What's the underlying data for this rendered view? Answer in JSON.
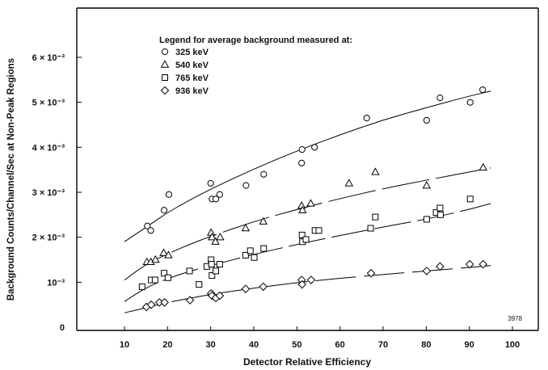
{
  "chart_data": {
    "type": "scatter",
    "xlabel": "Detector Relative Efficiency",
    "ylabel": "Background Counts/Channel/Sec at Non-Peak Regions",
    "xlim": [
      0,
      100
    ],
    "ylim": [
      0,
      0.007
    ],
    "x_ticks": [
      10,
      20,
      30,
      40,
      50,
      60,
      70,
      80,
      90,
      100
    ],
    "x_tick_labels": [
      "10",
      "20",
      "30",
      "40",
      "50",
      "60",
      "70",
      "80",
      "90",
      "100"
    ],
    "y_ticks": [
      0,
      0.001,
      0.002,
      0.003,
      0.004,
      0.005,
      0.006
    ],
    "y_tick_labels": [
      "0",
      "10⁻³",
      "2 × 10⁻³",
      "3 × 10⁻³",
      "4 × 10⁻³",
      "5 × 10⁻³",
      "6 × 10⁻³"
    ],
    "grid": false,
    "legend_title": "Legend for average background measured at:",
    "legend_position": "top-left",
    "figure_number": "3978",
    "series": [
      {
        "name": "325 keV",
        "marker": "circle",
        "points": [
          [
            15.3,
            0.00225
          ],
          [
            16.1,
            0.00215
          ],
          [
            19.2,
            0.0026
          ],
          [
            20.3,
            0.00295
          ],
          [
            30,
            0.0032
          ],
          [
            30.3,
            0.00285
          ],
          [
            31.2,
            0.00285
          ],
          [
            32.1,
            0.00295
          ],
          [
            38.2,
            0.00315
          ],
          [
            42.3,
            0.0034
          ],
          [
            51.2,
            0.00395
          ],
          [
            51.1,
            0.00365
          ],
          [
            54.1,
            0.004
          ],
          [
            66.2,
            0.00465
          ],
          [
            80.1,
            0.0046
          ],
          [
            83.2,
            0.0051
          ],
          [
            90.2,
            0.005
          ],
          [
            93.1,
            0.00528
          ]
        ],
        "fit_curve": [
          [
            10,
            0.0019
          ],
          [
            15,
            0.00222
          ],
          [
            20,
            0.00255
          ],
          [
            25,
            0.00282
          ],
          [
            30,
            0.00307
          ],
          [
            40,
            0.00352
          ],
          [
            50,
            0.00392
          ],
          [
            60,
            0.00428
          ],
          [
            70,
            0.00461
          ],
          [
            80,
            0.00488
          ],
          [
            90,
            0.00514
          ],
          [
            95,
            0.00525
          ]
        ]
      },
      {
        "name": "540 keV",
        "marker": "triangle",
        "points": [
          [
            15.2,
            0.00145
          ],
          [
            16.1,
            0.00145
          ],
          [
            17.2,
            0.0015
          ],
          [
            19.1,
            0.00165
          ],
          [
            20.2,
            0.0016
          ],
          [
            30.1,
            0.0021
          ],
          [
            30.3,
            0.002
          ],
          [
            31.1,
            0.0019
          ],
          [
            32.2,
            0.002
          ],
          [
            38.1,
            0.0022
          ],
          [
            42.2,
            0.00235
          ],
          [
            51.1,
            0.0027
          ],
          [
            51.3,
            0.0026
          ],
          [
            53.2,
            0.00275
          ],
          [
            62.1,
            0.0032
          ],
          [
            68.2,
            0.00345
          ],
          [
            80.1,
            0.00315
          ],
          [
            93.2,
            0.00355
          ]
        ],
        "fit_curve": [
          [
            10,
            0.00105
          ],
          [
            15,
            0.0014
          ],
          [
            20,
            0.00163
          ],
          [
            25,
            0.00184
          ],
          [
            30,
            0.00202
          ],
          [
            40,
            0.00235
          ],
          [
            50,
            0.00262
          ],
          [
            60,
            0.00286
          ],
          [
            70,
            0.00308
          ],
          [
            80,
            0.00327
          ],
          [
            90,
            0.00345
          ],
          [
            95,
            0.00354
          ]
        ]
      },
      {
        "name": "765 keV",
        "marker": "square",
        "points": [
          [
            14.1,
            0.0009
          ],
          [
            16.2,
            0.00105
          ],
          [
            17.1,
            0.00105
          ],
          [
            19.2,
            0.0012
          ],
          [
            20.1,
            0.0011
          ],
          [
            25.1,
            0.00125
          ],
          [
            27.3,
            0.00095
          ],
          [
            29.1,
            0.00135
          ],
          [
            30.1,
            0.0015
          ],
          [
            30.2,
            0.0014
          ],
          [
            30.3,
            0.00115
          ],
          [
            31.2,
            0.00125
          ],
          [
            32.1,
            0.0014
          ],
          [
            38.1,
            0.0016
          ],
          [
            39.2,
            0.0017
          ],
          [
            40.1,
            0.00155
          ],
          [
            42.3,
            0.00175
          ],
          [
            51.2,
            0.00205
          ],
          [
            51.3,
            0.0019
          ],
          [
            52.1,
            0.00195
          ],
          [
            54.2,
            0.00215
          ],
          [
            55.1,
            0.00215
          ],
          [
            67.1,
            0.0022
          ],
          [
            68.2,
            0.00245
          ],
          [
            80.1,
            0.0024
          ],
          [
            82.3,
            0.00255
          ],
          [
            83.2,
            0.00265
          ],
          [
            83.3,
            0.0025
          ],
          [
            90.2,
            0.00285
          ]
        ],
        "fit_curve": [
          [
            10,
            0.00057
          ],
          [
            15,
            0.00088
          ],
          [
            20,
            0.00108
          ],
          [
            25,
            0.00124
          ],
          [
            30,
            0.00137
          ],
          [
            40,
            0.00162
          ],
          [
            50,
            0.00184
          ],
          [
            60,
            0.00204
          ],
          [
            70,
            0.00223
          ],
          [
            80,
            0.0024
          ],
          [
            90,
            0.00262
          ],
          [
            95,
            0.00275
          ]
        ]
      },
      {
        "name": "936 keV",
        "marker": "diamond",
        "points": [
          [
            15.1,
            0.00045
          ],
          [
            16.2,
            0.0005
          ],
          [
            18.1,
            0.00055
          ],
          [
            19.3,
            0.00055
          ],
          [
            25.2,
            0.0006
          ],
          [
            30.1,
            0.00075
          ],
          [
            30.3,
            0.0007
          ],
          [
            31.2,
            0.00065
          ],
          [
            32.1,
            0.0007
          ],
          [
            38.1,
            0.00085
          ],
          [
            42.2,
            0.0009
          ],
          [
            51.1,
            0.00105
          ],
          [
            51.2,
            0.00095
          ],
          [
            53.3,
            0.00105
          ],
          [
            67.2,
            0.0012
          ],
          [
            80.1,
            0.00125
          ],
          [
            83.2,
            0.00135
          ],
          [
            90.1,
            0.0014
          ],
          [
            93.2,
            0.0014
          ]
        ],
        "fit_curve": [
          [
            10,
            0.00032
          ],
          [
            15,
            0.00043
          ],
          [
            20,
            0.00055
          ],
          [
            25,
            0.00064
          ],
          [
            30,
            0.00073
          ],
          [
            40,
            0.00087
          ],
          [
            50,
            0.00099
          ],
          [
            60,
            0.00109
          ],
          [
            70,
            0.00117
          ],
          [
            80,
            0.00125
          ],
          [
            90,
            0.00133
          ],
          [
            95,
            0.00137
          ]
        ]
      }
    ]
  }
}
